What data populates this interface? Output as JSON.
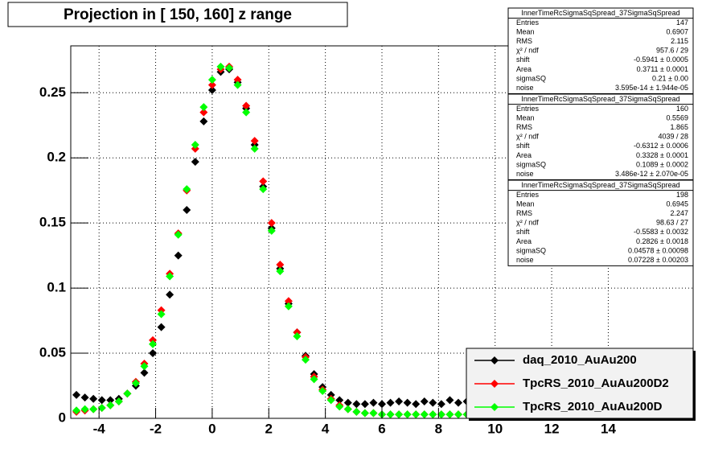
{
  "title_box": "Projection in [ 150, 160] z range",
  "chart_data": {
    "type": "scatter",
    "x": [
      -4.8,
      -4.5,
      -4.2,
      -3.9,
      -3.6,
      -3.3,
      -3.0,
      -2.7,
      -2.4,
      -2.1,
      -1.8,
      -1.5,
      -1.2,
      -0.9,
      -0.6,
      -0.3,
      0,
      0.3,
      0.6,
      0.9,
      1.2,
      1.5,
      1.8,
      2.1,
      2.4,
      2.7,
      3.0,
      3.3,
      3.6,
      3.9,
      4.2,
      4.5,
      4.8,
      5.1,
      5.4,
      5.7,
      6.0,
      6.3,
      6.6,
      6.9,
      7.2,
      7.5,
      7.8,
      8.1,
      8.4,
      8.7,
      9.0
    ],
    "series": [
      {
        "name": "daq_2010_AuAu200",
        "color": "#000000",
        "values": [
          0.018,
          0.016,
          0.015,
          0.014,
          0.014,
          0.015,
          0.019,
          0.025,
          0.035,
          0.05,
          0.07,
          0.095,
          0.125,
          0.16,
          0.197,
          0.228,
          0.252,
          0.266,
          0.268,
          0.258,
          0.238,
          0.21,
          0.178,
          0.146,
          0.115,
          0.088,
          0.066,
          0.048,
          0.034,
          0.024,
          0.018,
          0.014,
          0.012,
          0.011,
          0.011,
          0.012,
          0.011,
          0.012,
          0.013,
          0.012,
          0.011,
          0.013,
          0.012,
          0.011,
          0.014,
          0.012,
          0.013
        ]
      },
      {
        "name": "TpcRS_2010_AuAu200D2",
        "color": "#ff0000",
        "values": [
          0.005,
          0.006,
          0.007,
          0.008,
          0.01,
          0.013,
          0.019,
          0.028,
          0.042,
          0.06,
          0.083,
          0.111,
          0.142,
          0.175,
          0.207,
          0.235,
          0.256,
          0.268,
          0.27,
          0.26,
          0.24,
          0.213,
          0.182,
          0.15,
          0.118,
          0.09,
          0.066,
          0.047,
          0.032,
          0.022,
          0.015,
          0.01,
          0.007,
          0.005,
          0.004,
          0.004,
          0.003,
          0.003,
          0.003,
          0.003,
          0.003,
          0.003,
          0.003,
          0.003,
          0.003,
          0.003,
          0.003
        ]
      },
      {
        "name": "TpcRS_2010_AuAu200D",
        "color": "#00ff00",
        "values": [
          0.006,
          0.007,
          0.007,
          0.008,
          0.01,
          0.013,
          0.019,
          0.027,
          0.04,
          0.057,
          0.08,
          0.109,
          0.141,
          0.176,
          0.21,
          0.239,
          0.26,
          0.27,
          0.269,
          0.256,
          0.235,
          0.207,
          0.176,
          0.144,
          0.113,
          0.086,
          0.063,
          0.045,
          0.03,
          0.021,
          0.014,
          0.009,
          0.007,
          0.005,
          0.004,
          0.004,
          0.003,
          0.003,
          0.003,
          0.003,
          0.003,
          0.003,
          0.003,
          0.003,
          0.003,
          0.003,
          0.003
        ]
      }
    ],
    "xlim": [
      -5,
      17
    ],
    "ylim": [
      0,
      0.286
    ],
    "xticks": [
      -4,
      -2,
      0,
      2,
      4,
      6,
      8,
      10,
      12,
      14
    ],
    "yticks": [
      0,
      0.05,
      0.1,
      0.15,
      0.2,
      0.25
    ],
    "grid": true,
    "legend": "bottom-right"
  },
  "stats_boxes": [
    {
      "title": "InnerTimeRcSigmaSqSpread_37SigmaSqSpread",
      "rows": [
        [
          "Entries",
          "147"
        ],
        [
          "Mean",
          "0.6907"
        ],
        [
          "RMS",
          "2.115"
        ],
        [
          "χ² / ndf",
          "957.6 / 29"
        ],
        [
          "shift",
          "-0.5941 ± 0.0005"
        ],
        [
          "Area",
          "0.3711 ± 0.0001"
        ],
        [
          "sigmaSQ",
          "0.21 ± 0.00"
        ],
        [
          "noise",
          "3.595e-14 ± 1.944e-05"
        ]
      ]
    },
    {
      "title": "InnerTimeRcSigmaSqSpread_37SigmaSqSpread",
      "rows": [
        [
          "Entries",
          "160"
        ],
        [
          "Mean",
          "0.5569"
        ],
        [
          "RMS",
          "1.865"
        ],
        [
          "χ² / ndf",
          "4039 / 28"
        ],
        [
          "shift",
          "-0.6312 ± 0.0006"
        ],
        [
          "Area",
          "0.3328 ± 0.0001"
        ],
        [
          "sigmaSQ",
          "0.1089 ± 0.0002"
        ],
        [
          "noise",
          "3.486e-12 ± 2.070e-05"
        ]
      ]
    },
    {
      "title": "InnerTimeRcSigmaSqSpread_37SigmaSqSpread",
      "rows": [
        [
          "Entries",
          "198"
        ],
        [
          "Mean",
          "0.6945"
        ],
        [
          "RMS",
          "2.247"
        ],
        [
          "χ² / ndf",
          "98.63 / 27"
        ],
        [
          "shift",
          "-0.5583 ± 0.0032"
        ],
        [
          "Area",
          "0.2826 ± 0.0018"
        ],
        [
          "sigmaSQ",
          "0.04578 ± 0.00098"
        ],
        [
          "noise",
          "0.07228 ± 0.00203"
        ]
      ]
    }
  ]
}
